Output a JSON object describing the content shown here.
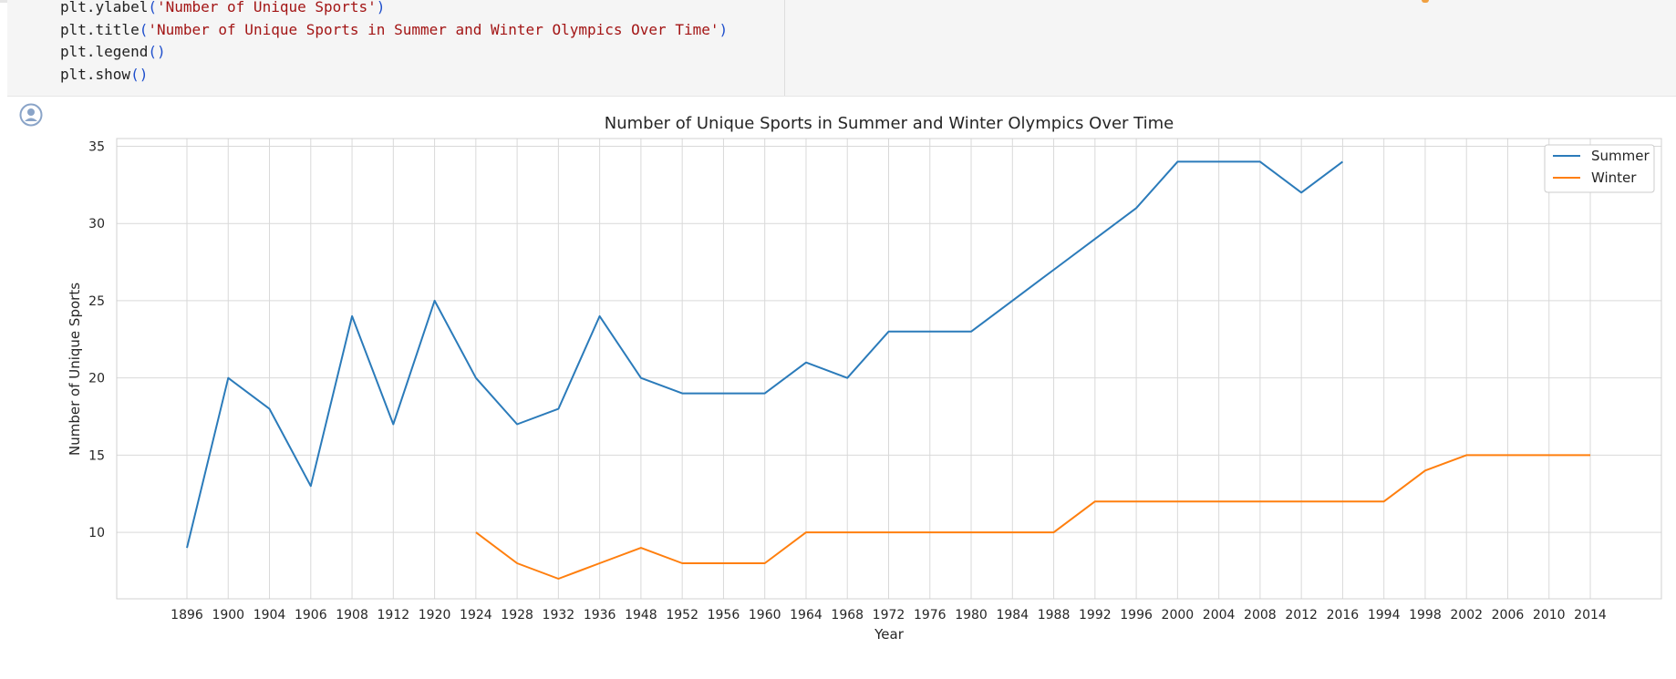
{
  "code_cell": {
    "lines": [
      [
        {
          "t": "plt.ylabel",
          "c": "plain"
        },
        {
          "t": "(",
          "c": "par"
        },
        {
          "t": "'Number of Unique Sports'",
          "c": "str"
        },
        {
          "t": ")",
          "c": "par"
        }
      ],
      [
        {
          "t": "plt.title",
          "c": "plain"
        },
        {
          "t": "(",
          "c": "par"
        },
        {
          "t": "'Number of Unique Sports in Summer and Winter Olympics Over Time'",
          "c": "str"
        },
        {
          "t": ")",
          "c": "par"
        }
      ],
      [
        {
          "t": "plt.legend",
          "c": "plain"
        },
        {
          "t": "()",
          "c": "par"
        }
      ],
      [
        {
          "t": "plt.show",
          "c": "plain"
        },
        {
          "t": "()",
          "c": "par"
        }
      ]
    ]
  },
  "output": {
    "icon": "user-circle-icon"
  },
  "colors": {
    "summer": "#2b7bba",
    "winter": "#ff7f0e",
    "grid": "#d9d9d9",
    "string": "#a31515",
    "paren": "#1f4fcc"
  },
  "chart_data": {
    "type": "line",
    "title": "Number of Unique Sports in Summer and Winter Olympics Over Time",
    "xlabel": "Year",
    "ylabel": "Number of Unique Sports",
    "categories": [
      "1896",
      "1900",
      "1904",
      "1906",
      "1908",
      "1912",
      "1920",
      "1924",
      "1928",
      "1932",
      "1936",
      "1948",
      "1952",
      "1956",
      "1960",
      "1964",
      "1968",
      "1972",
      "1976",
      "1980",
      "1984",
      "1988",
      "1992",
      "1996",
      "2000",
      "2004",
      "2008",
      "2012",
      "2016",
      "1994",
      "1998",
      "2002",
      "2006",
      "2010",
      "2014"
    ],
    "yticks": [
      10,
      15,
      20,
      25,
      30,
      35
    ],
    "ylim": [
      5.7,
      35.5
    ],
    "grid": true,
    "legend_position": "top-right",
    "series": [
      {
        "name": "Summer",
        "color": "#2b7bba",
        "values": [
          9,
          20,
          18,
          13,
          24,
          17,
          25,
          20,
          17,
          18,
          24,
          20,
          19,
          19,
          19,
          21,
          20,
          23,
          23,
          23,
          25,
          27,
          29,
          31,
          34,
          34,
          34,
          32,
          34,
          null,
          null,
          null,
          null,
          null,
          null
        ]
      },
      {
        "name": "Winter",
        "color": "#ff7f0e",
        "values": [
          null,
          null,
          null,
          null,
          null,
          null,
          null,
          10,
          8,
          7,
          8,
          9,
          8,
          8,
          8,
          10,
          10,
          10,
          10,
          10,
          10,
          10,
          12,
          12,
          12,
          12,
          12,
          12,
          12,
          12,
          14,
          15,
          15,
          15,
          15
        ]
      }
    ]
  }
}
